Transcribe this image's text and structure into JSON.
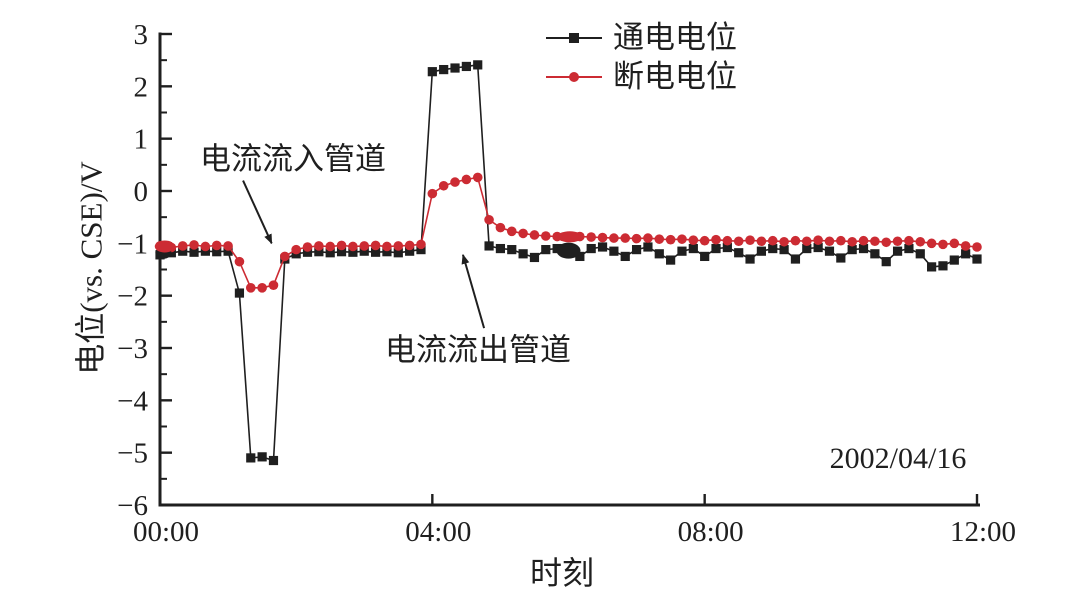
{
  "chart_data": {
    "type": "line",
    "title": "",
    "xlabel": "时刻",
    "ylabel": "电位(vs. CSE)/V",
    "date_label": "2002/04/16",
    "xlim_hours": [
      0,
      12
    ],
    "ylim": [
      -6,
      3
    ],
    "grid": false,
    "legend_position": "top-center-inside",
    "x_ticks": [
      {
        "hour": 0,
        "label": "00:00"
      },
      {
        "hour": 4,
        "label": "04:00"
      },
      {
        "hour": 8,
        "label": "08:00"
      },
      {
        "hour": 12,
        "label": "12:00"
      }
    ],
    "y_ticks": [
      {
        "value": 3,
        "label": "3"
      },
      {
        "value": 2,
        "label": "2"
      },
      {
        "value": 1,
        "label": "1"
      },
      {
        "value": 0,
        "label": "0"
      },
      {
        "value": -1,
        "label": "−1"
      },
      {
        "value": -2,
        "label": "−2"
      },
      {
        "value": -3,
        "label": "−3"
      },
      {
        "value": -4,
        "label": "−4"
      },
      {
        "value": -5,
        "label": "−5"
      },
      {
        "value": -6,
        "label": "−6"
      }
    ],
    "y_minor_tick_step": 0.5,
    "sample_interval_minutes": 10,
    "legend": [
      {
        "name": "通电电位",
        "marker": "square",
        "color": "#1f1f1f"
      },
      {
        "name": "断电电位",
        "marker": "circle",
        "color": "#cc2b33"
      }
    ],
    "series": [
      {
        "name": "通电电位",
        "marker": "square",
        "color": "#1f1f1f",
        "start_hour": 0,
        "step_minutes": 10,
        "values": [
          -1.22,
          -1.18,
          -1.15,
          -1.17,
          -1.15,
          -1.16,
          -1.15,
          -1.95,
          -5.1,
          -5.08,
          -5.15,
          -1.3,
          -1.2,
          -1.17,
          -1.16,
          -1.18,
          -1.16,
          -1.17,
          -1.15,
          -1.17,
          -1.16,
          -1.18,
          -1.15,
          -1.12,
          2.28,
          2.32,
          2.35,
          2.38,
          2.41,
          -1.05,
          -1.1,
          -1.12,
          -1.2,
          -1.27,
          -1.12,
          -1.1,
          -1.15,
          -1.25,
          -1.1,
          -1.07,
          -1.15,
          -1.25,
          -1.12,
          -1.07,
          -1.2,
          -1.32,
          -1.15,
          -1.1,
          -1.25,
          -1.1,
          -1.08,
          -1.18,
          -1.3,
          -1.15,
          -1.1,
          -1.12,
          -1.3,
          -1.1,
          -1.08,
          -1.15,
          -1.28,
          -1.12,
          -1.1,
          -1.2,
          -1.35,
          -1.15,
          -1.1,
          -1.2,
          -1.45,
          -1.43,
          -1.32,
          -1.2,
          -1.3
        ]
      },
      {
        "name": "断电电位",
        "marker": "circle",
        "color": "#cc2b33",
        "start_hour": 0,
        "step_minutes": 10,
        "values": [
          -1.05,
          -1.08,
          -1.05,
          -1.03,
          -1.06,
          -1.04,
          -1.05,
          -1.35,
          -1.85,
          -1.85,
          -1.8,
          -1.25,
          -1.12,
          -1.07,
          -1.05,
          -1.06,
          -1.04,
          -1.06,
          -1.05,
          -1.04,
          -1.06,
          -1.05,
          -1.04,
          -1.02,
          -0.05,
          0.1,
          0.17,
          0.22,
          0.26,
          -0.55,
          -0.7,
          -0.77,
          -0.81,
          -0.84,
          -0.86,
          -0.87,
          -0.88,
          -0.87,
          -0.88,
          -0.89,
          -0.9,
          -0.9,
          -0.91,
          -0.9,
          -0.92,
          -0.93,
          -0.92,
          -0.94,
          -0.95,
          -0.93,
          -0.95,
          -0.96,
          -0.94,
          -0.96,
          -0.95,
          -0.97,
          -0.95,
          -0.96,
          -0.94,
          -0.96,
          -0.95,
          -0.97,
          -0.95,
          -0.96,
          -0.98,
          -0.96,
          -0.95,
          -0.97,
          -1.0,
          -1.02,
          -1.0,
          -1.05,
          -1.07
        ]
      }
    ],
    "marker_clusters": [
      {
        "series": 0,
        "hour": 0.05,
        "value": -1.18,
        "rx": 8,
        "ry": 6
      },
      {
        "series": 1,
        "hour": 0.07,
        "value": -1.06,
        "rx": 10,
        "ry": 6
      },
      {
        "series": 0,
        "hour": 6.0,
        "value": -1.14,
        "rx": 12,
        "ry": 8
      },
      {
        "series": 1,
        "hour": 6.02,
        "value": -0.875,
        "rx": 13,
        "ry": 5.5
      }
    ],
    "annotations": [
      {
        "text": "电流流入管道",
        "arrow_from_hour": 1.22,
        "arrow_from_value": 0.2,
        "arrow_to_hour": 1.64,
        "arrow_to_value": -1.0
      },
      {
        "text": "电流流出管道",
        "arrow_from_hour": 4.76,
        "arrow_from_value": -2.62,
        "arrow_to_hour": 4.45,
        "arrow_to_value": -1.22
      }
    ]
  }
}
